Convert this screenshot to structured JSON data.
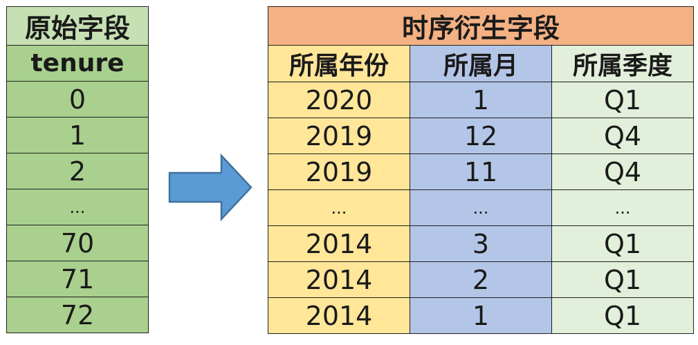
{
  "source": {
    "title": "原始字段",
    "column": "tenure",
    "values": [
      "0",
      "1",
      "2",
      "...",
      "70",
      "71",
      "72"
    ]
  },
  "derived": {
    "title": "时序衍生字段",
    "columns": [
      "所属年份",
      "所属月",
      "所属季度"
    ],
    "rows": [
      [
        "2020",
        "1",
        "Q1"
      ],
      [
        "2019",
        "12",
        "Q4"
      ],
      [
        "2019",
        "11",
        "Q4"
      ],
      [
        "...",
        "...",
        "..."
      ],
      [
        "2014",
        "3",
        "Q1"
      ],
      [
        "2014",
        "2",
        "Q1"
      ],
      [
        "2014",
        "1",
        "Q1"
      ]
    ]
  },
  "colors": {
    "source_title_bg": "#c6e0b4",
    "source_cells_bg": "#a9d08e",
    "derived_title_bg": "#f4b183",
    "year_col_bg": "#ffe699",
    "month_col_bg": "#b4c6e7",
    "quarter_col_bg": "#e2efda",
    "arrow_fill": "#5b9bd5",
    "arrow_stroke": "#41719c"
  },
  "arrow": {
    "icon": "right-arrow-icon"
  }
}
